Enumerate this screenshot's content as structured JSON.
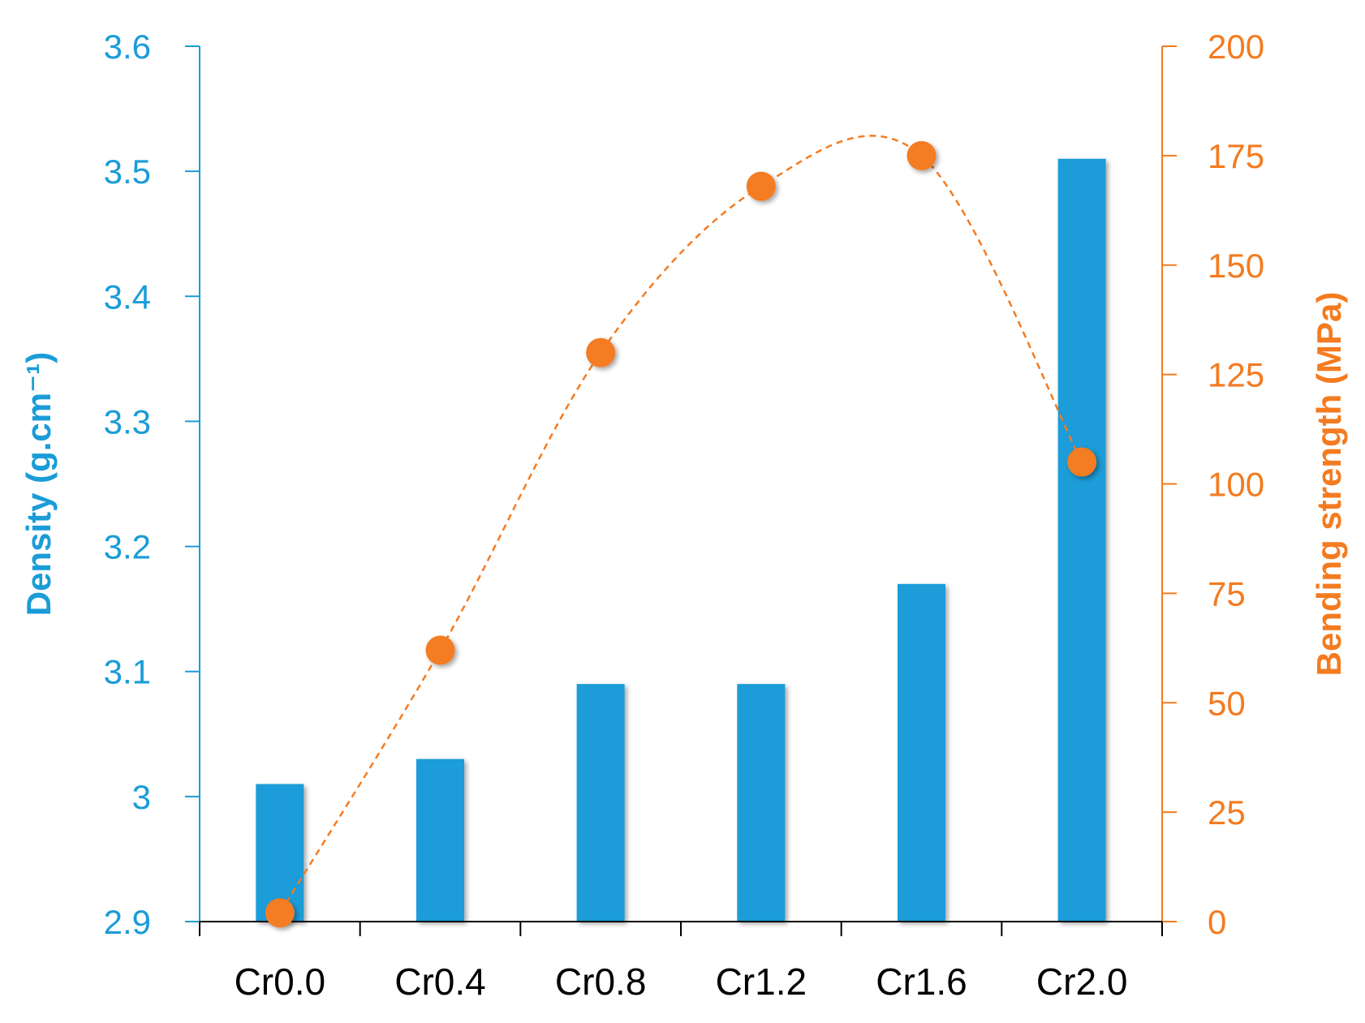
{
  "chart_data": {
    "type": "bar",
    "categories": [
      "Cr0.0",
      "Cr0.4",
      "Cr0.8",
      "Cr1.2",
      "Cr1.6",
      "Cr2.0"
    ],
    "series": [
      {
        "type": "bar",
        "axis": "left",
        "values": [
          3.01,
          3.03,
          3.09,
          3.09,
          3.17,
          3.51
        ],
        "color": "#1a9cd8"
      },
      {
        "type": "line",
        "style": "dashed-smooth",
        "axis": "right",
        "values": [
          2,
          62,
          130,
          168,
          175,
          105
        ],
        "color": "#f47b20"
      }
    ],
    "ylabel_left": "Density (g.cm⁻¹)",
    "ylabel_right": "Bending strength (MPa)",
    "ylim_left": [
      2.9,
      3.6
    ],
    "yticks_left": [
      "2.9",
      "3",
      "3.1",
      "3.2",
      "3.3",
      "3.4",
      "3.5",
      "3.6"
    ],
    "ylim_right": [
      0,
      200
    ],
    "yticks_right": [
      "0",
      "25",
      "50",
      "75",
      "100",
      "125",
      "150",
      "175",
      "200"
    ],
    "grid": false,
    "legend": "none"
  }
}
